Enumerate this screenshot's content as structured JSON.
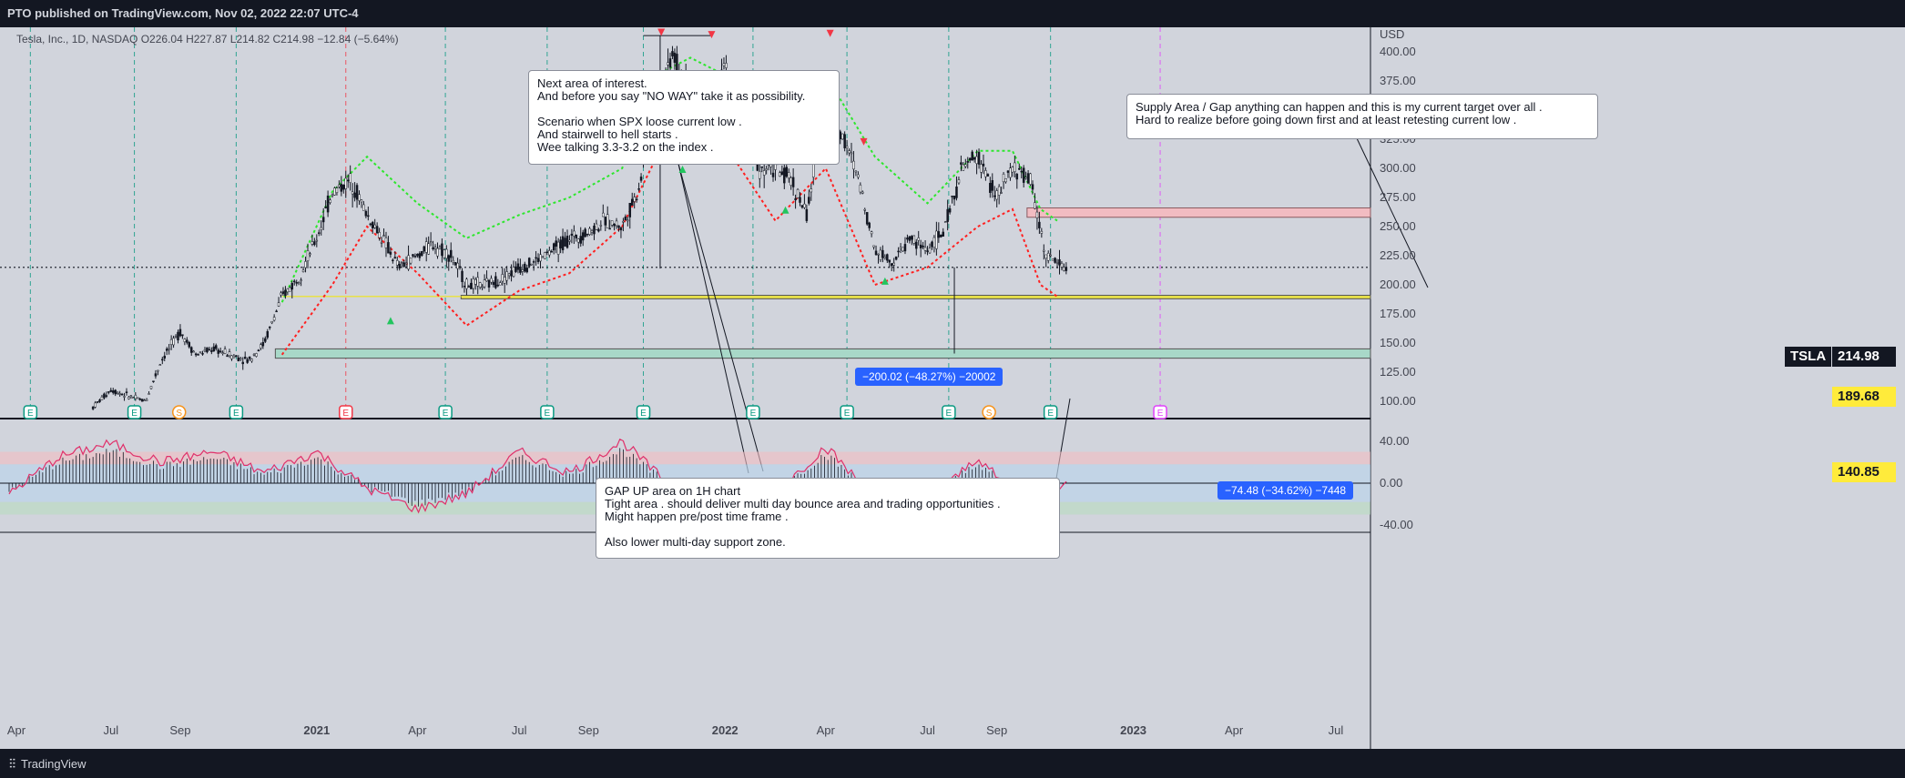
{
  "header": {
    "published": "PTO published on TradingView.com, Nov 02, 2022 22:07 UTC-4"
  },
  "legend": {
    "text": "Tesla, Inc., 1D, NASDAQ  O226.04  H227.87  L214.82  C214.98  −12.84 (−5.64%)"
  },
  "footer": {
    "brand": "TradingView",
    "logo": "tv-logo-icon"
  },
  "annotations": [
    {
      "id": "note-next-area",
      "text": "Next area of interest.\nAnd before you say \"NO WAY\"   take it as possibility.\n\nScenario when SPX loose current low .\nAnd stairwell to hell starts .\nWee talking 3.3-3.2 on the index ."
    },
    {
      "id": "note-supply",
      "text": "Supply Area / Gap anything can happen and this is my  current target over all .\n Hard to realize before going down first and at least retesting current low ."
    },
    {
      "id": "note-gap-up",
      "text": "GAP UP  area on 1H chart\nTight area .  should deliver multi day bounce area and trading opportunities .\n  Might happen pre/post time frame .\n\nAlso lower multi-day support zone."
    }
  ],
  "measurements": [
    {
      "label": "−200.02 (−48.27%) −20002"
    },
    {
      "label": "−74.48 (−34.62%) −7448"
    }
  ],
  "price_tags": [
    {
      "label": "TSLA",
      "value": "214.98",
      "bg": "#131722",
      "fg": "#ffffff"
    },
    {
      "value": "189.68",
      "bg": "#ffeb3b",
      "fg": "#131722"
    },
    {
      "value": "140.85",
      "bg": "#ffeb3b",
      "fg": "#131722"
    }
  ],
  "colors": {
    "background": "#d1d4dc",
    "candle": "#131722",
    "upper_band": "#2ee62e",
    "lower_band": "#ff2020",
    "supply_zone": "#f2bcc2",
    "support_zone": "#a8d8c8",
    "oscillator": "#e0306a",
    "earnings_marker": "#089981",
    "dividend_marker": "#f7931a",
    "future_earnings_marker": "#e040fb"
  },
  "chart_data": [
    {
      "type": "line",
      "title": "",
      "series_name": "TSLA",
      "y_axis": {
        "unit": "USD",
        "ticks": [
          100,
          125,
          150,
          175,
          200,
          225,
          250,
          275,
          300,
          325,
          350,
          375,
          400
        ],
        "range": [
          88,
          430
        ]
      },
      "x_axis": {
        "ticks": [
          "Apr",
          "Jul",
          "Sep",
          "2021",
          "Apr",
          "Jul",
          "Sep",
          "2022",
          "Apr",
          "Jul",
          "Sep",
          "2023",
          "Apr",
          "Jul"
        ]
      },
      "series": [
        {
          "name": "close",
          "x": [
            "2020-06-15",
            "2020-07-01",
            "2020-07-15",
            "2020-08-01",
            "2020-08-15",
            "2020-09-01",
            "2020-09-15",
            "2020-10-01",
            "2020-10-15",
            "2020-11-01",
            "2020-11-15",
            "2020-12-01",
            "2020-12-15",
            "2021-01-01",
            "2021-01-15",
            "2021-02-01",
            "2021-02-15",
            "2021-03-01",
            "2021-03-15",
            "2021-04-01",
            "2021-04-15",
            "2021-05-01",
            "2021-05-15",
            "2021-06-01",
            "2021-06-15",
            "2021-07-01",
            "2021-07-15",
            "2021-08-01",
            "2021-08-15",
            "2021-09-01",
            "2021-09-15",
            "2021-10-01",
            "2021-10-15",
            "2021-11-01",
            "2021-11-15",
            "2021-12-01",
            "2021-12-15",
            "2022-01-01",
            "2022-01-15",
            "2022-02-01",
            "2022-02-15",
            "2022-03-01",
            "2022-03-15",
            "2022-04-01",
            "2022-04-15",
            "2022-05-01",
            "2022-05-15",
            "2022-06-01",
            "2022-06-15",
            "2022-07-01",
            "2022-07-15",
            "2022-08-01",
            "2022-08-15",
            "2022-09-01",
            "2022-09-15",
            "2022-10-01",
            "2022-10-15",
            "2022-11-02"
          ],
          "values": [
            95,
            110,
            105,
            100,
            135,
            160,
            140,
            145,
            140,
            135,
            150,
            190,
            205,
            240,
            280,
            290,
            260,
            240,
            215,
            225,
            235,
            225,
            200,
            200,
            205,
            215,
            220,
            230,
            240,
            245,
            255,
            250,
            280,
            360,
            400,
            360,
            320,
            390,
            330,
            300,
            300,
            290,
            260,
            360,
            330,
            290,
            230,
            220,
            240,
            230,
            245,
            300,
            310,
            275,
            300,
            290,
            225,
            214.98
          ]
        },
        {
          "name": "upper band",
          "x": [
            "2020-12-01",
            "2021-01-15",
            "2021-02-15",
            "2021-04-01",
            "2021-05-15",
            "2021-07-01",
            "2021-08-15",
            "2021-10-01",
            "2021-11-01",
            "2021-12-01",
            "2022-01-01",
            "2022-02-15",
            "2022-04-01",
            "2022-05-15",
            "2022-07-01",
            "2022-08-15",
            "2022-09-15",
            "2022-10-10",
            "2022-10-25"
          ],
          "values": [
            185,
            280,
            310,
            270,
            240,
            260,
            275,
            300,
            380,
            395,
            380,
            320,
            380,
            310,
            270,
            315,
            315,
            265,
            255
          ]
        },
        {
          "name": "lower band",
          "x": [
            "2020-12-01",
            "2021-01-15",
            "2021-02-15",
            "2021-04-01",
            "2021-05-15",
            "2021-07-01",
            "2021-08-15",
            "2021-10-01",
            "2021-11-01",
            "2021-12-01",
            "2022-01-01",
            "2022-02-15",
            "2022-04-01",
            "2022-05-15",
            "2022-07-01",
            "2022-08-15",
            "2022-09-15",
            "2022-10-10",
            "2022-10-25"
          ],
          "values": [
            140,
            200,
            250,
            210,
            165,
            195,
            210,
            250,
            310,
            340,
            320,
            255,
            300,
            200,
            215,
            250,
            265,
            200,
            190
          ]
        }
      ],
      "levels": [
        {
          "name": "current price",
          "value": 214.98
        },
        {
          "name": "support line",
          "value": 189.68
        },
        {
          "name": "gap support",
          "value": 140.85
        },
        {
          "name": "supply zone",
          "range": [
            258,
            266
          ]
        }
      ]
    },
    {
      "type": "line",
      "title": "",
      "series_name": "oscillator",
      "y_axis": {
        "ticks": [
          "40.00",
          "0.00",
          "-40.00"
        ],
        "range": [
          -48,
          48
        ]
      },
      "series": [
        {
          "name": "oscillator",
          "x": [
            "2020-04-01",
            "2020-05-15",
            "2020-07-01",
            "2020-08-15",
            "2020-10-01",
            "2020-11-15",
            "2021-01-01",
            "2021-02-15",
            "2021-04-01",
            "2021-05-15",
            "2021-07-01",
            "2021-08-15",
            "2021-10-01",
            "2021-11-15",
            "2022-01-01",
            "2022-02-15",
            "2022-04-01",
            "2022-05-15",
            "2022-07-01",
            "2022-08-15",
            "2022-10-01",
            "2022-11-02"
          ],
          "values": [
            -10,
            25,
            38,
            20,
            30,
            10,
            30,
            -5,
            -25,
            -10,
            30,
            10,
            40,
            -5,
            -5,
            -10,
            35,
            -15,
            -20,
            25,
            -30,
            5
          ]
        }
      ]
    }
  ]
}
